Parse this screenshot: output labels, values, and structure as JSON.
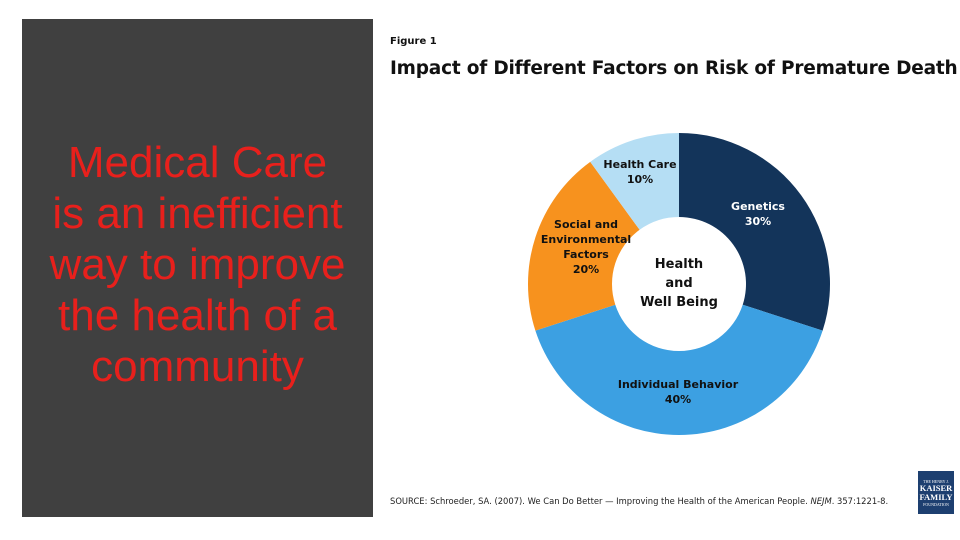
{
  "slide": {
    "headline": "Medical Care is an inefficient way to improve the health of a community"
  },
  "figure": {
    "label": "Figure 1",
    "title": "Impact of Different Factors on Risk of Premature Death",
    "center_label": [
      "Health",
      "and",
      "Well Being"
    ],
    "source_prefix": "SOURCE: Schroeder, SA. (2007). We Can Do Better — Improving the Health of the American People. ",
    "source_journal": "NEJM",
    "source_suffix": ". 357:1221-8."
  },
  "logo": {
    "line1": "THE HENRY J.",
    "line2": "KAISER",
    "line3": "FAMILY",
    "line4": "FOUNDATION"
  },
  "chart_data": {
    "type": "pie",
    "donut": true,
    "title": "Impact of Different Factors on Risk of Premature Death",
    "slices": [
      {
        "label": "Genetics",
        "display_lines": [
          "Genetics"
        ],
        "value": 30,
        "value_label": "30%",
        "color": "#13345a",
        "text_color": "#ffffff"
      },
      {
        "label": "Individual Behavior",
        "display_lines": [
          "Individual Behavior"
        ],
        "value": 40,
        "value_label": "40%",
        "color": "#3ca0e2",
        "text_color": "#111111"
      },
      {
        "label": "Social and Environmental Factors",
        "display_lines": [
          "Social and",
          "Environmental",
          "Factors"
        ],
        "value": 20,
        "value_label": "20%",
        "color": "#f7921e",
        "text_color": "#111111"
      },
      {
        "label": "Health Care",
        "display_lines": [
          "Health Care"
        ],
        "value": 10,
        "value_label": "10%",
        "color": "#b5def4",
        "text_color": "#111111"
      }
    ]
  }
}
